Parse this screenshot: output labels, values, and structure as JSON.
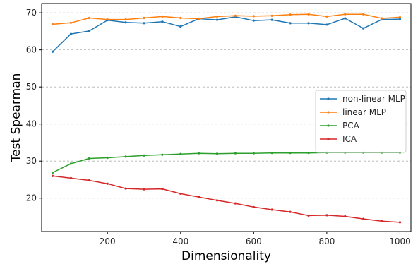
{
  "chart_data": {
    "type": "line",
    "xlabel": "Dimensionality",
    "ylabel": "Test Spearman",
    "xlim": [
      20,
      1030
    ],
    "ylim": [
      11,
      72.5
    ],
    "xticks": [
      200,
      400,
      600,
      800,
      1000
    ],
    "yticks": [
      20,
      30,
      40,
      50,
      60,
      70
    ],
    "grid": "horizontal dashed",
    "legend_position": "center-right",
    "x": [
      50,
      100,
      150,
      200,
      250,
      300,
      350,
      400,
      450,
      500,
      550,
      600,
      650,
      700,
      750,
      800,
      850,
      900,
      950,
      1000
    ],
    "series": [
      {
        "name": "non-linear MLP",
        "color": "#1f77b4",
        "values": [
          59.5,
          64.3,
          65.1,
          68.0,
          67.4,
          67.2,
          67.6,
          66.3,
          68.4,
          68.1,
          68.9,
          67.9,
          68.1,
          67.2,
          67.2,
          66.8,
          68.5,
          65.8,
          68.2,
          68.3
        ]
      },
      {
        "name": "linear MLP",
        "color": "#ff7f0e",
        "values": [
          66.9,
          67.3,
          68.6,
          68.2,
          68.2,
          68.6,
          69.0,
          68.6,
          68.4,
          69.0,
          69.2,
          69.1,
          69.2,
          69.5,
          69.6,
          69.0,
          69.6,
          69.6,
          68.5,
          68.8
        ]
      },
      {
        "name": "PCA",
        "color": "#2ca02c",
        "values": [
          26.9,
          29.3,
          30.7,
          30.9,
          31.2,
          31.5,
          31.7,
          31.9,
          32.1,
          32.0,
          32.1,
          32.1,
          32.2,
          32.2,
          32.2,
          32.3,
          32.3,
          32.3,
          32.3,
          32.3
        ]
      },
      {
        "name": "ICA",
        "color": "#d62728",
        "values": [
          26.0,
          25.4,
          24.8,
          23.9,
          22.6,
          22.4,
          22.5,
          21.2,
          20.3,
          19.4,
          18.6,
          17.6,
          16.9,
          16.3,
          15.3,
          15.4,
          15.1,
          14.4,
          13.8,
          13.5
        ]
      }
    ]
  }
}
